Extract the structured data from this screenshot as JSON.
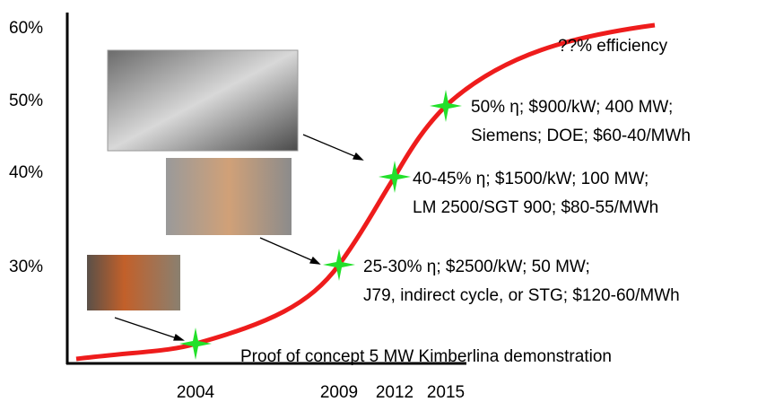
{
  "y_labels": [
    "60%",
    "50%",
    "40%",
    "30%"
  ],
  "x_labels": [
    "2004",
    "2009",
    "2012",
    "2015"
  ],
  "annotation": "??% efficiency",
  "milestones": [
    {
      "lines": [
        "Proof of concept 5 MW Kimberlina demonstration"
      ]
    },
    {
      "lines": [
        "25-30% η; $2500/kW; 50 MW;",
        "J79, indirect cycle, or STG; $120-60/MWh"
      ]
    },
    {
      "lines": [
        "40-45% η; $1500/kW; 100 MW;",
        "LM 2500/SGT 900; $80-55/MWh"
      ]
    },
    {
      "lines": [
        "50% η; $900/kW; 400 MW;",
        "Siemens; DOE; $60-40/MWh"
      ]
    }
  ]
}
